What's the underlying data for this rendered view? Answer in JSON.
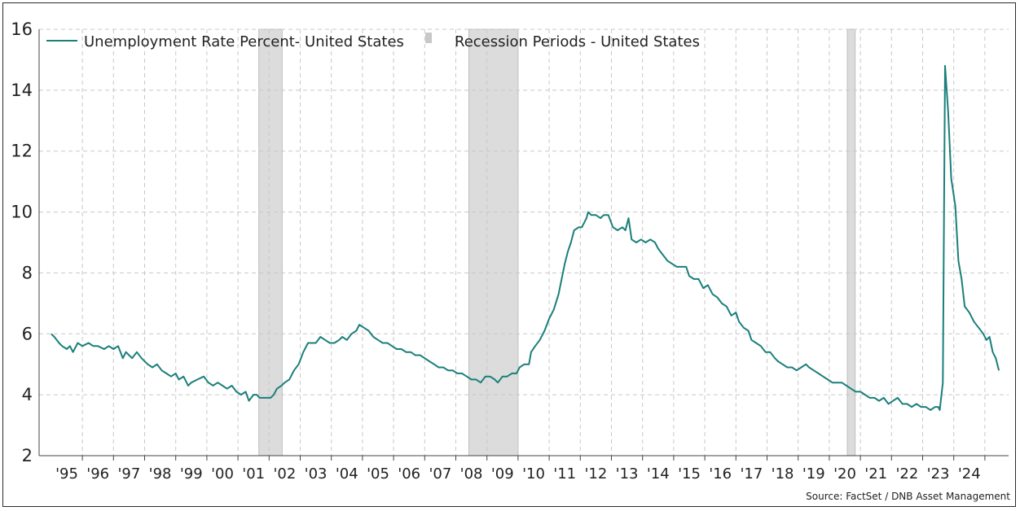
{
  "chart_data": {
    "type": "line",
    "title": "",
    "xlabel": "",
    "ylabel": "",
    "ylim": [
      2,
      16
    ],
    "xlim": [
      1994.5,
      2025.0
    ],
    "yticks": [
      2,
      4,
      6,
      8,
      10,
      12,
      14,
      16
    ],
    "xtick_labels": [
      "'95",
      "'96",
      "'97",
      "'98",
      "'99",
      "'00",
      "'01",
      "'02",
      "'03",
      "'04",
      "'05",
      "'06",
      "'07",
      "'08",
      "'09",
      "'10",
      "'11",
      "'12",
      "'13",
      "'14",
      "'15",
      "'16",
      "'17",
      "'18",
      "'19",
      "'20",
      "'21",
      "'22",
      "'23",
      "'24"
    ],
    "xtick_years": [
      1995,
      1996,
      1997,
      1998,
      1999,
      2000,
      2001,
      2002,
      2003,
      2004,
      2005,
      2006,
      2007,
      2008,
      2009,
      2010,
      2011,
      2012,
      2013,
      2014,
      2015,
      2016,
      2017,
      2018,
      2019,
      2020,
      2021,
      2022,
      2023,
      2024
    ],
    "grid": true,
    "legend_position": "top-left",
    "legend": [
      {
        "label": "Unemployment Rate Percent- United States",
        "kind": "line"
      },
      {
        "label": "Recession Periods - United States",
        "kind": "band"
      }
    ],
    "recessions": [
      {
        "start": 2001.17,
        "end": 2001.92
      },
      {
        "start": 2007.92,
        "end": 2009.5
      },
      {
        "start": 2020.08,
        "end": 2020.33
      }
    ],
    "series": [
      {
        "name": "Unemployment Rate Percent- United States",
        "color": "#1a7f7a",
        "points": [
          [
            1994.5,
            6.0
          ],
          [
            1994.6,
            5.9
          ],
          [
            1994.75,
            5.7
          ],
          [
            1994.85,
            5.6
          ],
          [
            1995.0,
            5.5
          ],
          [
            1995.1,
            5.6
          ],
          [
            1995.2,
            5.4
          ],
          [
            1995.35,
            5.7
          ],
          [
            1995.5,
            5.6
          ],
          [
            1995.7,
            5.7
          ],
          [
            1995.85,
            5.6
          ],
          [
            1996.0,
            5.6
          ],
          [
            1996.2,
            5.5
          ],
          [
            1996.35,
            5.6
          ],
          [
            1996.5,
            5.5
          ],
          [
            1996.65,
            5.6
          ],
          [
            1996.8,
            5.2
          ],
          [
            1996.9,
            5.4
          ],
          [
            1997.0,
            5.3
          ],
          [
            1997.1,
            5.2
          ],
          [
            1997.25,
            5.4
          ],
          [
            1997.4,
            5.2
          ],
          [
            1997.6,
            5.0
          ],
          [
            1997.75,
            4.9
          ],
          [
            1997.9,
            5.0
          ],
          [
            1998.05,
            4.8
          ],
          [
            1998.2,
            4.7
          ],
          [
            1998.35,
            4.6
          ],
          [
            1998.5,
            4.7
          ],
          [
            1998.6,
            4.5
          ],
          [
            1998.75,
            4.6
          ],
          [
            1998.9,
            4.3
          ],
          [
            1999.0,
            4.4
          ],
          [
            1999.2,
            4.5
          ],
          [
            1999.4,
            4.6
          ],
          [
            1999.55,
            4.4
          ],
          [
            1999.7,
            4.3
          ],
          [
            1999.85,
            4.4
          ],
          [
            2000.0,
            4.3
          ],
          [
            2000.15,
            4.2
          ],
          [
            2000.3,
            4.3
          ],
          [
            2000.45,
            4.1
          ],
          [
            2000.6,
            4.0
          ],
          [
            2000.75,
            4.1
          ],
          [
            2000.85,
            3.8
          ],
          [
            2001.0,
            4.0
          ],
          [
            2001.1,
            4.0
          ],
          [
            2001.2,
            3.9
          ],
          [
            2001.35,
            3.9
          ],
          [
            2001.55,
            3.9
          ],
          [
            2001.65,
            4.0
          ],
          [
            2001.75,
            4.2
          ],
          [
            2001.9,
            4.3
          ],
          [
            2002.0,
            4.4
          ],
          [
            2002.15,
            4.5
          ],
          [
            2002.3,
            4.8
          ],
          [
            2002.45,
            5.0
          ],
          [
            2002.6,
            5.4
          ],
          [
            2002.75,
            5.7
          ],
          [
            2002.9,
            5.7
          ],
          [
            2003.0,
            5.7
          ],
          [
            2003.15,
            5.9
          ],
          [
            2003.3,
            5.8
          ],
          [
            2003.45,
            5.7
          ],
          [
            2003.6,
            5.7
          ],
          [
            2003.75,
            5.8
          ],
          [
            2003.85,
            5.9
          ],
          [
            2004.0,
            5.8
          ],
          [
            2004.15,
            6.0
          ],
          [
            2004.3,
            6.1
          ],
          [
            2004.4,
            6.3
          ],
          [
            2004.55,
            6.2
          ],
          [
            2004.7,
            6.1
          ],
          [
            2004.85,
            5.9
          ],
          [
            2005.0,
            5.8
          ],
          [
            2005.15,
            5.7
          ],
          [
            2005.3,
            5.7
          ],
          [
            2005.45,
            5.6
          ],
          [
            2005.6,
            5.5
          ],
          [
            2005.75,
            5.5
          ],
          [
            2005.9,
            5.4
          ],
          [
            2006.05,
            5.4
          ],
          [
            2006.2,
            5.3
          ],
          [
            2006.35,
            5.3
          ],
          [
            2006.5,
            5.2
          ],
          [
            2006.65,
            5.1
          ],
          [
            2006.8,
            5.0
          ],
          [
            2006.95,
            4.9
          ],
          [
            2007.1,
            4.9
          ],
          [
            2007.25,
            4.8
          ],
          [
            2007.4,
            4.8
          ],
          [
            2007.55,
            4.7
          ],
          [
            2007.7,
            4.7
          ],
          [
            2007.85,
            4.6
          ],
          [
            2008.0,
            4.5
          ],
          [
            2008.15,
            4.5
          ],
          [
            2008.3,
            4.4
          ],
          [
            2008.45,
            4.6
          ],
          [
            2008.6,
            4.6
          ],
          [
            2008.75,
            4.5
          ],
          [
            2008.85,
            4.4
          ],
          [
            2009.0,
            4.6
          ],
          [
            2009.15,
            4.6
          ],
          [
            2009.3,
            4.7
          ],
          [
            2009.45,
            4.7
          ],
          [
            2009.55,
            4.9
          ],
          [
            2009.7,
            5.0
          ],
          [
            2009.85,
            5.0
          ],
          [
            2009.92,
            5.4
          ],
          [
            2010.05,
            5.6
          ],
          [
            2010.2,
            5.8
          ],
          [
            2010.35,
            6.1
          ],
          [
            2010.5,
            6.5
          ],
          [
            2010.65,
            6.8
          ],
          [
            2010.8,
            7.3
          ],
          [
            2010.9,
            7.8
          ],
          [
            2011.0,
            8.3
          ],
          [
            2011.1,
            8.7
          ],
          [
            2011.2,
            9.0
          ],
          [
            2011.3,
            9.4
          ],
          [
            2011.45,
            9.5
          ],
          [
            2011.55,
            9.5
          ],
          [
            2011.7,
            9.8
          ],
          [
            2011.75,
            10.0
          ],
          [
            2011.85,
            9.9
          ],
          [
            2012.0,
            9.9
          ],
          [
            2012.15,
            9.8
          ],
          [
            2012.25,
            9.9
          ],
          [
            2012.4,
            9.9
          ],
          [
            2012.55,
            9.5
          ],
          [
            2012.7,
            9.4
          ],
          [
            2012.85,
            9.5
          ],
          [
            2012.95,
            9.4
          ],
          [
            2013.05,
            9.8
          ],
          [
            2013.15,
            9.1
          ],
          [
            2013.3,
            9.0
          ],
          [
            2013.45,
            9.1
          ],
          [
            2013.6,
            9.0
          ],
          [
            2013.75,
            9.1
          ],
          [
            2013.9,
            9.0
          ],
          [
            2014.0,
            8.8
          ],
          [
            2014.15,
            8.6
          ],
          [
            2014.3,
            8.4
          ],
          [
            2014.45,
            8.3
          ],
          [
            2014.6,
            8.2
          ],
          [
            2014.75,
            8.2
          ],
          [
            2014.9,
            8.2
          ],
          [
            2015.0,
            7.9
          ],
          [
            2015.15,
            7.8
          ],
          [
            2015.3,
            7.8
          ],
          [
            2015.45,
            7.5
          ],
          [
            2015.6,
            7.6
          ],
          [
            2015.75,
            7.3
          ],
          [
            2015.9,
            7.2
          ],
          [
            2016.05,
            7.0
          ],
          [
            2016.2,
            6.9
          ],
          [
            2016.35,
            6.6
          ],
          [
            2016.5,
            6.7
          ],
          [
            2016.6,
            6.4
          ],
          [
            2016.75,
            6.2
          ],
          [
            2016.9,
            6.1
          ],
          [
            2017.0,
            5.8
          ],
          [
            2017.15,
            5.7
          ],
          [
            2017.3,
            5.6
          ],
          [
            2017.45,
            5.4
          ],
          [
            2017.6,
            5.4
          ],
          [
            2017.75,
            5.2
          ],
          [
            2017.85,
            5.1
          ],
          [
            2018.0,
            5.0
          ],
          [
            2018.15,
            4.9
          ],
          [
            2018.3,
            4.9
          ],
          [
            2018.45,
            4.8
          ],
          [
            2018.6,
            4.9
          ],
          [
            2018.75,
            5.0
          ],
          [
            2018.85,
            4.9
          ],
          [
            2019.0,
            4.8
          ],
          [
            2019.15,
            4.7
          ],
          [
            2019.3,
            4.6
          ],
          [
            2019.45,
            4.5
          ],
          [
            2019.6,
            4.4
          ],
          [
            2019.75,
            4.4
          ],
          [
            2019.9,
            4.4
          ],
          [
            2020.05,
            4.3
          ],
          [
            2020.2,
            4.2
          ],
          [
            2020.35,
            4.1
          ],
          [
            2020.5,
            4.1
          ],
          [
            2020.65,
            4.0
          ],
          [
            2020.8,
            3.9
          ],
          [
            2020.95,
            3.9
          ],
          [
            2021.1,
            3.8
          ],
          [
            2021.25,
            3.9
          ],
          [
            2021.4,
            3.7
          ],
          [
            2021.55,
            3.8
          ],
          [
            2021.7,
            3.9
          ],
          [
            2021.85,
            3.7
          ],
          [
            2022.0,
            3.7
          ],
          [
            2022.15,
            3.6
          ],
          [
            2022.3,
            3.7
          ],
          [
            2022.45,
            3.6
          ],
          [
            2022.6,
            3.6
          ],
          [
            2022.75,
            3.5
          ],
          [
            2022.9,
            3.6
          ],
          [
            2023.0,
            3.6
          ],
          [
            2023.05,
            3.5
          ],
          [
            2023.15,
            4.4
          ],
          [
            2023.22,
            14.8
          ],
          [
            2023.32,
            13.3
          ],
          [
            2023.42,
            11.1
          ],
          [
            2023.55,
            10.2
          ],
          [
            2023.65,
            8.4
          ],
          [
            2023.75,
            7.8
          ],
          [
            2023.85,
            6.9
          ],
          [
            2024.0,
            6.7
          ],
          [
            2024.15,
            6.4
          ],
          [
            2024.3,
            6.2
          ],
          [
            2024.45,
            6.0
          ],
          [
            2024.55,
            5.8
          ],
          [
            2024.65,
            5.9
          ],
          [
            2024.75,
            5.4
          ],
          [
            2024.85,
            5.2
          ],
          [
            2024.95,
            4.8
          ]
        ]
      }
    ],
    "source": "Source: FactSet / DNB Asset Management"
  }
}
